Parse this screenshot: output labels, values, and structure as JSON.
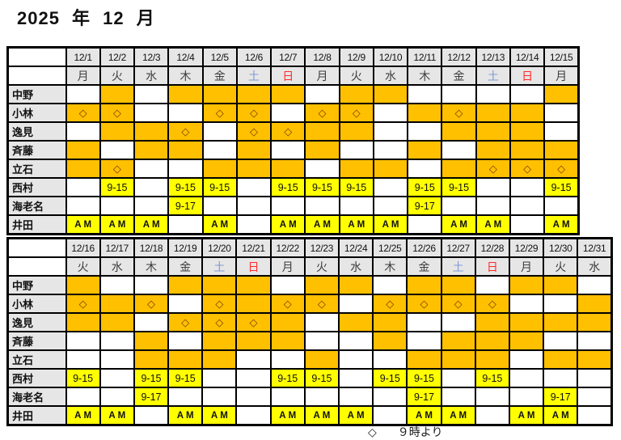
{
  "title": "2025 年 12 月",
  "legend": {
    "diamond": "◇",
    "text": "９時より"
  },
  "symbols": {
    "diamond": "◇"
  },
  "colors": {
    "cell_orange": "#FFC000",
    "cell_yellow": "#FFFF00",
    "header_bg": "#E7E6E6",
    "saturday_blue": "#7E9BD7",
    "sunday_red": "#FF2A2A",
    "diamond_brown": "#7F3F00"
  },
  "tables": [
    {
      "dates": [
        "12/1",
        "12/2",
        "12/3",
        "12/4",
        "12/5",
        "12/6",
        "12/7",
        "12/8",
        "12/9",
        "12/10",
        "12/11",
        "12/12",
        "12/13",
        "12/14",
        "12/15"
      ],
      "days": [
        "月",
        "火",
        "水",
        "木",
        "金",
        "土",
        "日",
        "月",
        "火",
        "水",
        "木",
        "金",
        "土",
        "日",
        "月"
      ],
      "rows": [
        {
          "name": "中野",
          "cells": [
            "",
            "orange",
            "",
            "orange",
            "orange",
            "orange",
            "orange",
            "",
            "orange",
            "orange",
            "",
            "",
            "",
            "",
            "orange"
          ]
        },
        {
          "name": "小林",
          "cells": [
            "diamond",
            "diamond",
            "",
            "",
            "diamond",
            "diamond",
            "",
            "diamond",
            "diamond",
            "",
            "orange",
            "diamond",
            "orange",
            "orange",
            ""
          ]
        },
        {
          "name": "逸見",
          "cells": [
            "",
            "orange",
            "orange",
            "diamond",
            "",
            "diamond",
            "diamond",
            "orange",
            "orange",
            "",
            "",
            "orange",
            "orange",
            "orange",
            ""
          ]
        },
        {
          "name": "斉藤",
          "cells": [
            "orange",
            "",
            "orange",
            "orange",
            "",
            "orange",
            "",
            "orange",
            "",
            "",
            "orange",
            "",
            "orange",
            "orange",
            "orange"
          ]
        },
        {
          "name": "立石",
          "cells": [
            "orange",
            "diamond",
            "",
            "",
            "orange",
            "orange",
            "orange",
            "",
            "orange",
            "orange",
            "",
            "orange",
            "diamond",
            "diamond",
            "diamond"
          ]
        },
        {
          "name": "西村",
          "cells": [
            "",
            "9-15",
            "",
            "9-15",
            "9-15",
            "",
            "9-15",
            "9-15",
            "9-15",
            "",
            "9-15",
            "9-15",
            "",
            "",
            "9-15"
          ]
        },
        {
          "name": "海老名",
          "cells": [
            "",
            "",
            "",
            "9-17",
            "",
            "",
            "",
            "",
            "",
            "",
            "9-17",
            "",
            "",
            "",
            ""
          ]
        },
        {
          "name": "井田",
          "cells": [
            "AM",
            "AM",
            "AM",
            "",
            "AM",
            "",
            "AM",
            "AM",
            "AM",
            "AM",
            "",
            "AM",
            "AM",
            "",
            "AM"
          ]
        }
      ]
    },
    {
      "dates": [
        "12/16",
        "12/17",
        "12/18",
        "12/19",
        "12/20",
        "12/21",
        "12/22",
        "12/23",
        "12/24",
        "12/25",
        "12/26",
        "12/27",
        "12/28",
        "12/29",
        "12/30",
        "12/31"
      ],
      "days": [
        "火",
        "水",
        "木",
        "金",
        "土",
        "日",
        "月",
        "火",
        "水",
        "木",
        "金",
        "土",
        "日",
        "月",
        "火",
        "水"
      ],
      "rows": [
        {
          "name": "中野",
          "cells": [
            "orange",
            "",
            "",
            "orange",
            "orange",
            "orange",
            "",
            "orange",
            "orange",
            "",
            "orange",
            "orange",
            "",
            "orange",
            "orange",
            ""
          ]
        },
        {
          "name": "小林",
          "cells": [
            "diamond",
            "orange",
            "diamond",
            "",
            "diamond",
            "orange",
            "diamond",
            "diamond",
            "",
            "diamond",
            "diamond",
            "diamond",
            "diamond",
            "",
            "",
            "orange"
          ]
        },
        {
          "name": "逸見",
          "cells": [
            "orange",
            "orange",
            "",
            "diamond",
            "diamond",
            "diamond",
            "orange",
            "",
            "orange",
            "orange",
            "",
            "",
            "orange",
            "orange",
            "orange",
            "orange"
          ]
        },
        {
          "name": "斉藤",
          "cells": [
            "",
            "",
            "orange",
            "",
            "orange",
            "orange",
            "orange",
            "",
            "",
            "orange",
            "",
            "orange",
            "orange",
            "orange",
            "",
            ""
          ]
        },
        {
          "name": "立石",
          "cells": [
            "",
            "",
            "orange",
            "orange",
            "orange",
            "",
            "",
            "orange",
            "",
            "",
            "orange",
            "orange",
            "orange",
            "",
            "orange",
            "orange"
          ]
        },
        {
          "name": "西村",
          "cells": [
            "9-15",
            "",
            "9-15",
            "9-15",
            "",
            "",
            "9-15",
            "9-15",
            "",
            "9-15",
            "9-15",
            "",
            "9-15",
            "",
            "",
            ""
          ]
        },
        {
          "name": "海老名",
          "cells": [
            "",
            "",
            "9-17",
            "",
            "",
            "",
            "",
            "",
            "",
            "",
            "9-17",
            "",
            "",
            "",
            "9-17",
            ""
          ]
        },
        {
          "name": "井田",
          "cells": [
            "AM",
            "AM",
            "",
            "AM",
            "AM",
            "",
            "AM",
            "AM",
            "AM",
            "",
            "AM",
            "AM",
            "",
            "AM",
            "AM",
            ""
          ]
        }
      ]
    }
  ]
}
